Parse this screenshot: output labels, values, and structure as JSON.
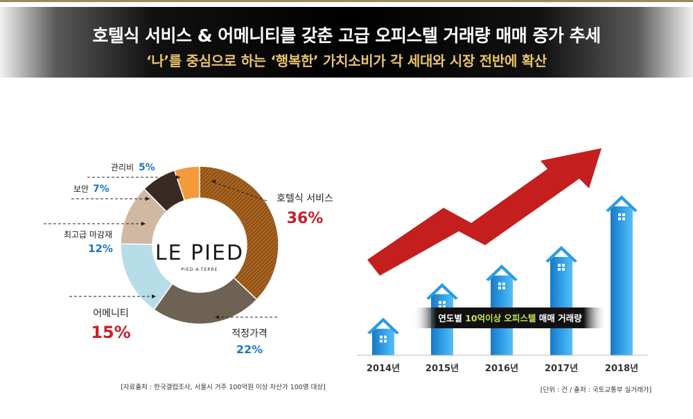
{
  "header": {
    "title": "호텔식 서비스 & 어메니티를 갖춘 고급 오피스텔 거래량 매매 증가 추세",
    "subtitle": "‘나’를 중심으로 하는 ‘행복한’ 가치소비가 각 세대와 시장 전반에 확산"
  },
  "logo": {
    "main": "LE PIED",
    "sub": "PIED-A-TERRE"
  },
  "chart_data": [
    {
      "type": "pie",
      "subtype": "donut",
      "slices": [
        {
          "label": "호텔식 서비스",
          "value": 36,
          "display": "36%",
          "color": "#9a5a1a"
        },
        {
          "label": "적정가격",
          "value": 22,
          "display": "22%",
          "color": "#6e6254"
        },
        {
          "label": "어메니티",
          "value": 15,
          "display": "15%",
          "color": "#b7dde8"
        },
        {
          "label": "최고급 마감재",
          "value": 12,
          "display": "12%",
          "color": "#d1b8a0"
        },
        {
          "label": "보안",
          "value": 7,
          "display": "7%",
          "color": "#3a2a24"
        },
        {
          "label": "관리비",
          "value": 5,
          "display": "5%",
          "color": "#f39a3c"
        }
      ],
      "source": "[자료출처 : 한국갤럽조사, 서울시 거주 100억원 이상 자산가 100명 대상]"
    },
    {
      "type": "bar",
      "title": "연도별 10억이상 오피스텔 매매 거래량",
      "title_parts": {
        "pre": "연도별 ",
        "highlight": "10억이상 오피스텔",
        "post": " 매매 거래량"
      },
      "categories": [
        "2014년",
        "2015년",
        "2016년",
        "2017년",
        "2018년"
      ],
      "values": [
        1,
        2.3,
        3,
        3.7,
        5.6
      ],
      "value_note": "relative heights estimated (no y-axis shown)",
      "trend_arrow": "increasing",
      "source": "[단위 : 건 / 출처 : 국토교통부 실거래가]"
    }
  ]
}
